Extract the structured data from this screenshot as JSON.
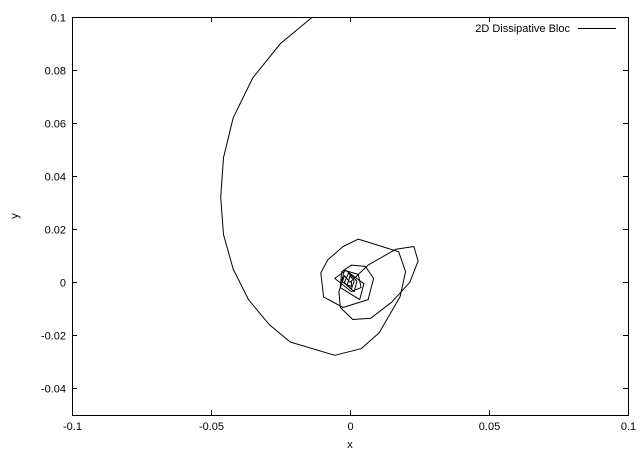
{
  "chart_data": {
    "type": "line",
    "title": "",
    "xlabel": "x",
    "ylabel": "y",
    "xlim": [
      -0.1,
      0.1
    ],
    "ylim": [
      -0.05,
      0.1
    ],
    "xticks": [
      -0.1,
      -0.05,
      0,
      0.05,
      0.1
    ],
    "xtick_labels": [
      "-0.1",
      "-0.05",
      "0",
      "0.05",
      "0.1"
    ],
    "yticks": [
      -0.04,
      -0.02,
      0,
      0.02,
      0.04,
      0.06,
      0.08,
      0.1
    ],
    "ytick_labels": [
      "-0.04",
      "-0.02",
      "0",
      "0.02",
      "0.04",
      "0.06",
      "0.08",
      "0.1"
    ],
    "grid": false,
    "legend_position": "top-right",
    "line_color": "#000000",
    "series": [
      {
        "name": "2D Dissipative Bloc",
        "x": [
          -0.0135,
          -0.025,
          -0.035,
          -0.042,
          -0.0455,
          -0.0465,
          -0.0455,
          -0.042,
          -0.0365,
          -0.029,
          -0.0215,
          -0.0055,
          0.004,
          0.0105,
          0.018,
          0.02,
          0.0175,
          0.0115,
          0.003,
          -0.0025,
          -0.008,
          -0.0105,
          -0.0095,
          -0.0025,
          0.0065,
          0.0085,
          0.0055,
          0.0005,
          -0.003,
          -0.0035,
          0.0035,
          0.005,
          -0.0015,
          -0.0055,
          0.0005,
          0.004,
          0.003,
          -0.002,
          -0.003,
          0.0015,
          0.0025,
          -0.0005,
          -0.002,
          0.0005,
          0.0015,
          0.0,
          -0.001,
          0.0005,
          0.0005,
          0.0,
          0.0065,
          0.0165,
          0.023,
          0.0245,
          0.0215,
          0.015,
          0.0075,
          0.001,
          -0.0035,
          -0.004,
          -0.002,
          0.0
        ],
        "y": [
          0.1,
          0.09,
          0.077,
          0.062,
          0.047,
          0.032,
          0.018,
          0.005,
          -0.0065,
          -0.016,
          -0.0225,
          -0.0275,
          -0.025,
          -0.019,
          -0.0055,
          0.004,
          0.0115,
          0.0135,
          0.0163,
          0.0135,
          0.0085,
          0.0035,
          -0.0055,
          -0.0095,
          -0.0065,
          0.0015,
          0.006,
          0.0065,
          0.004,
          -0.002,
          -0.0065,
          -0.0005,
          0.0045,
          0.0015,
          -0.0035,
          -0.002,
          0.003,
          0.0045,
          0.0005,
          -0.0035,
          0.0005,
          0.0035,
          0.0,
          -0.0025,
          0.0005,
          0.0025,
          -0.001,
          -0.0015,
          0.0005,
          0.0,
          0.0065,
          0.0125,
          0.0135,
          0.008,
          0.0,
          -0.0075,
          -0.0135,
          -0.014,
          -0.0095,
          -0.0035,
          0.0025,
          0.0
        ]
      }
    ]
  }
}
